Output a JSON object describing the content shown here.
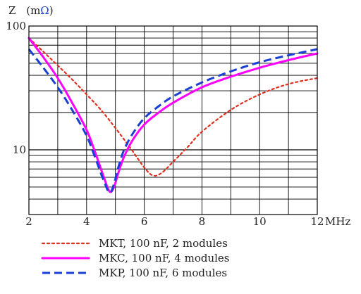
{
  "chart_data": {
    "type": "line",
    "ylabel_letter": "Z",
    "ylabel_unit_open": "(m",
    "ylabel_unit_symbol": "Ω",
    "ylabel_unit_close": ")",
    "x_unit": "MHz",
    "xlim": [
      2,
      12
    ],
    "ylim": [
      3,
      100
    ],
    "y_scale": "log",
    "grid": true,
    "x_ticks": [
      2,
      4,
      6,
      8,
      10,
      12
    ],
    "x_tick_labels": [
      "2",
      "4",
      "6",
      "8",
      "10",
      "12"
    ],
    "y_tick_labels": [
      {
        "value": 10,
        "label": "10"
      },
      {
        "value": 100,
        "label": "100"
      }
    ],
    "legend_position": "bottom-left",
    "series": [
      {
        "name": "MKT, 100 nF, 2 modules",
        "color": "#e03020",
        "style": "dotted",
        "x": [
          2.0,
          2.5,
          3.0,
          3.5,
          4.0,
          4.5,
          5.0,
          5.5,
          6.0,
          6.3,
          6.6,
          7.0,
          7.5,
          8.0,
          9.0,
          10.0,
          11.0,
          12.0
        ],
        "y": [
          80,
          62,
          48,
          37,
          28,
          21,
          15,
          10.5,
          7.2,
          6.2,
          6.5,
          8.0,
          10.5,
          14,
          21,
          28,
          34,
          38
        ]
      },
      {
        "name": "MKC, 100 nF, 4 modules",
        "color": "#ff00ff",
        "style": "solid",
        "x": [
          2.0,
          2.5,
          3.0,
          3.5,
          4.0,
          4.3,
          4.6,
          4.8,
          4.95,
          5.1,
          5.3,
          5.6,
          6.0,
          6.5,
          7.0,
          8.0,
          9.0,
          10.0,
          11.0,
          12.0
        ],
        "y": [
          80,
          56,
          38,
          24,
          14.5,
          9.5,
          6.0,
          4.6,
          5.0,
          6.5,
          8.8,
          12,
          16,
          20,
          24,
          32,
          39,
          46,
          53,
          60
        ]
      },
      {
        "name": "MKP, 100 nF, 6 modules",
        "color": "#1a3fd4",
        "style": "dashed",
        "x": [
          2.0,
          2.5,
          3.0,
          3.5,
          4.0,
          4.3,
          4.6,
          4.8,
          4.95,
          5.1,
          5.3,
          5.6,
          6.0,
          6.5,
          7.0,
          8.0,
          9.0,
          10.0,
          11.0,
          12.0
        ],
        "y": [
          65,
          46,
          32,
          21,
          13,
          8.6,
          5.6,
          4.5,
          5.3,
          7.2,
          10,
          13.5,
          18,
          22.5,
          27,
          35,
          43,
          51,
          58,
          65
        ]
      }
    ]
  }
}
